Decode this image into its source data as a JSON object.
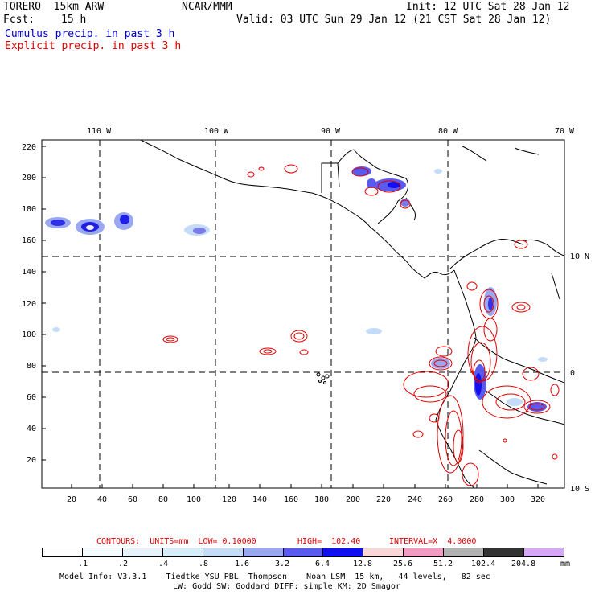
{
  "header": {
    "title": "TORERO  15km ARW",
    "org": "NCAR/MMM",
    "init": "Init: 12 UTC Sat 28 Jan 12",
    "fcst_label": "Fcst:",
    "fcst_value": "15 h",
    "valid": "Valid: 03 UTC Sun 29 Jan 12 (21 CST Sat 28 Jan 12)",
    "legend_cumulus": "Cumulus precip. in past 3 h",
    "legend_explicit": "Explicit precip. in past 3 h"
  },
  "colors": {
    "cumulus_text": "#0000c8",
    "explicit_text": "#e00000",
    "coast": "#000000"
  },
  "map": {
    "lon_labels": [
      "110 W",
      "100 W",
      "90 W",
      "80 W",
      "70 W"
    ],
    "lat_labels_right": [
      "10 N",
      "0",
      "10 S"
    ],
    "y_ticks": [
      "220",
      "200",
      "180",
      "160",
      "140",
      "120",
      "100",
      "80",
      "60",
      "40",
      "20"
    ],
    "x_ticks": [
      "20",
      "40",
      "60",
      "80",
      "100",
      "120",
      "140",
      "160",
      "180",
      "200",
      "220",
      "240",
      "260",
      "280",
      "300",
      "320"
    ]
  },
  "contour_info": {
    "contours": "CONTOURS:  UNITS=mm  LOW= 0.10000",
    "high": "HIGH=  102.40",
    "interval": "INTERVAL=X  4.0000"
  },
  "colorbar": {
    "labels": [
      ".1",
      ".2",
      ".4",
      ".8",
      "1.6",
      "3.2",
      "6.4",
      "12.8",
      "25.6",
      "51.2",
      "102.4",
      "204.8"
    ],
    "unit": "mm",
    "colors": [
      "#ffffff",
      "#f4fbff",
      "#e6f3fb",
      "#d6eefa",
      "#c4dcf7",
      "#9aa8f2",
      "#5a5aee",
      "#1010f0",
      "#fbd6d6",
      "#f19ac2",
      "#b2b2b2",
      "#323232",
      "#d6a6f7"
    ]
  },
  "footer": {
    "line1": "Model Info: V3.3.1    Tiedtke YSU PBL  Thompson    Noah LSM  15 km,   44 levels,   82 sec",
    "line2": "LW: Godd SW: Goddard DIFF: simple KM: 2D Smagor"
  }
}
